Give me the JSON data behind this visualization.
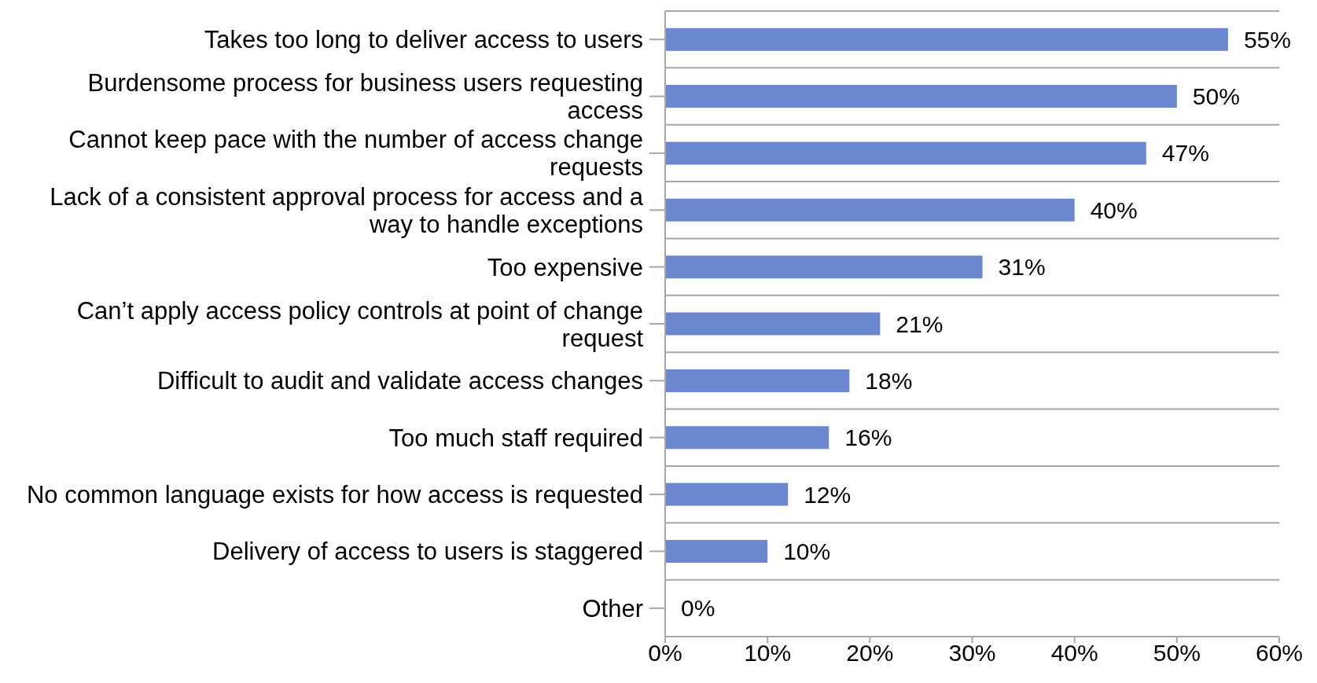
{
  "chart_data": {
    "type": "bar",
    "orientation": "horizontal",
    "categories": [
      "Takes too long to deliver access to users",
      "Burdensome process for business users requesting access",
      "Cannot keep pace with the number of access change requests",
      "Lack of a consistent approval process for access and a way to handle exceptions",
      "Too expensive",
      "Can’t apply access policy controls at point of change request",
      "Difficult to audit and validate access changes",
      "Too much staff required",
      "No common language exists for how access is requested",
      "Delivery of access to users is staggered",
      "Other"
    ],
    "values": [
      55,
      50,
      47,
      40,
      31,
      21,
      18,
      16,
      12,
      10,
      0
    ],
    "value_labels": [
      "55%",
      "50%",
      "47%",
      "40%",
      "31%",
      "21%",
      "18%",
      "16%",
      "12%",
      "10%",
      "0%"
    ],
    "color": "#6a87d0",
    "xlim": [
      0,
      60
    ],
    "xticks": [
      {
        "value": 0,
        "label": "0%"
      },
      {
        "value": 10,
        "label": "10%"
      },
      {
        "value": 20,
        "label": "20%"
      },
      {
        "value": 30,
        "label": "30%"
      },
      {
        "value": 40,
        "label": "40%"
      },
      {
        "value": 50,
        "label": "50%"
      },
      {
        "value": 60,
        "label": "60%"
      }
    ],
    "grid": "y",
    "legend": false
  }
}
